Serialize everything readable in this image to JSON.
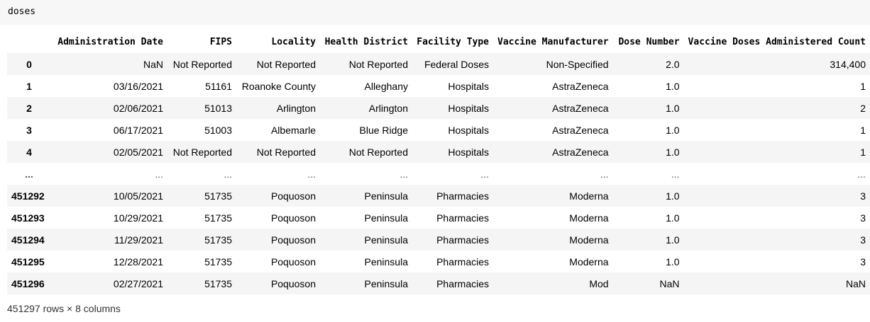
{
  "input": {
    "code": "doses"
  },
  "table": {
    "columns": [
      "Administration Date",
      "FIPS",
      "Locality",
      "Health District",
      "Facility Type",
      "Vaccine Manufacturer",
      "Dose Number",
      "Vaccine Doses Administered Count"
    ],
    "rows": [
      {
        "index": "0",
        "cells": [
          "NaN",
          "Not Reported",
          "Not Reported",
          "Not Reported",
          "Federal Doses",
          "Non-Specified",
          "2.0",
          "314,400"
        ]
      },
      {
        "index": "1",
        "cells": [
          "03/16/2021",
          "51161",
          "Roanoke County",
          "Alleghany",
          "Hospitals",
          "AstraZeneca",
          "1.0",
          "1"
        ]
      },
      {
        "index": "2",
        "cells": [
          "02/06/2021",
          "51013",
          "Arlington",
          "Arlington",
          "Hospitals",
          "AstraZeneca",
          "1.0",
          "2"
        ]
      },
      {
        "index": "3",
        "cells": [
          "06/17/2021",
          "51003",
          "Albemarle",
          "Blue Ridge",
          "Hospitals",
          "AstraZeneca",
          "1.0",
          "1"
        ]
      },
      {
        "index": "4",
        "cells": [
          "02/05/2021",
          "Not Reported",
          "Not Reported",
          "Not Reported",
          "Hospitals",
          "AstraZeneca",
          "1.0",
          "1"
        ]
      },
      {
        "index": "...",
        "cells": [
          "...",
          "...",
          "...",
          "...",
          "...",
          "...",
          "...",
          "..."
        ]
      },
      {
        "index": "451292",
        "cells": [
          "10/05/2021",
          "51735",
          "Poquoson",
          "Peninsula",
          "Pharmacies",
          "Moderna",
          "1.0",
          "3"
        ]
      },
      {
        "index": "451293",
        "cells": [
          "10/29/2021",
          "51735",
          "Poquoson",
          "Peninsula",
          "Pharmacies",
          "Moderna",
          "1.0",
          "3"
        ]
      },
      {
        "index": "451294",
        "cells": [
          "11/29/2021",
          "51735",
          "Poquoson",
          "Peninsula",
          "Pharmacies",
          "Moderna",
          "1.0",
          "3"
        ]
      },
      {
        "index": "451295",
        "cells": [
          "12/28/2021",
          "51735",
          "Poquoson",
          "Peninsula",
          "Pharmacies",
          "Moderna",
          "1.0",
          "3"
        ]
      },
      {
        "index": "451296",
        "cells": [
          "02/27/2021",
          "51735",
          "Poquoson",
          "Peninsula",
          "Pharmacies",
          "Mod",
          "NaN",
          "NaN"
        ]
      }
    ]
  },
  "shape": "451297 rows × 8 columns"
}
